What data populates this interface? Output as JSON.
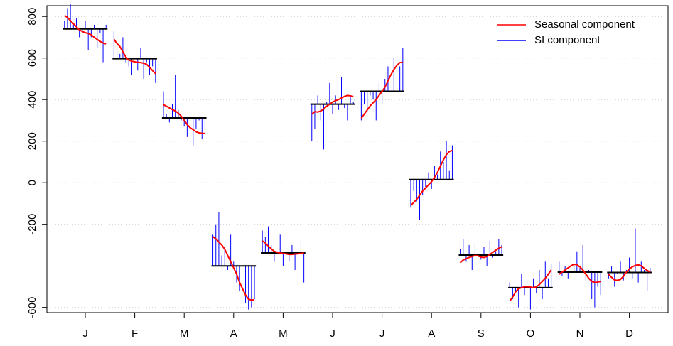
{
  "chart_data": {
    "type": "monthplot",
    "categories": [
      "J",
      "F",
      "M",
      "A",
      "M",
      "J",
      "J",
      "A",
      "S",
      "O",
      "N",
      "D"
    ],
    "means": [
      740,
      597,
      312,
      -400,
      -338,
      378,
      440,
      15,
      -348,
      -505,
      -430,
      -432
    ],
    "series": [
      {
        "name": "Seasonal component",
        "color": "#ff0000",
        "values": [
          [
            805,
            795,
            780,
            765,
            750,
            735,
            728,
            722,
            718,
            712,
            700,
            690,
            680,
            672,
            668
          ],
          [
            690,
            670,
            655,
            630,
            605,
            590,
            585,
            582,
            580,
            578,
            575,
            570,
            555,
            540,
            525
          ],
          [
            375,
            368,
            360,
            352,
            345,
            335,
            320,
            300,
            280,
            265,
            255,
            245,
            240,
            238,
            237
          ],
          [
            -260,
            -270,
            -285,
            -300,
            -320,
            -350,
            -380,
            -410,
            -440,
            -480,
            -510,
            -540,
            -560,
            -565,
            -562
          ],
          [
            -280,
            -290,
            -305,
            -318,
            -330,
            -335,
            -338,
            -340,
            -342,
            -345,
            -345,
            -343,
            -342,
            -340,
            -338
          ],
          [
            330,
            342,
            340,
            345,
            355,
            368,
            378,
            388,
            395,
            400,
            408,
            415,
            420,
            418,
            415
          ],
          [
            310,
            330,
            350,
            370,
            385,
            400,
            420,
            440,
            460,
            490,
            520,
            545,
            565,
            578,
            580
          ],
          [
            -110,
            -95,
            -80,
            -60,
            -40,
            -25,
            -10,
            5,
            25,
            50,
            80,
            110,
            135,
            150,
            155
          ],
          [
            -385,
            -372,
            -365,
            -360,
            -355,
            -350,
            -352,
            -358,
            -360,
            -355,
            -345,
            -335,
            -325,
            -315,
            -308
          ],
          [
            -570,
            -550,
            -525,
            -510,
            -505,
            -500,
            -500,
            -502,
            -505,
            -500,
            -490,
            -475,
            -460,
            -440,
            -420
          ],
          [
            -440,
            -430,
            -420,
            -410,
            -400,
            -392,
            -395,
            -405,
            -420,
            -440,
            -460,
            -475,
            -480,
            -478,
            -475
          ],
          [
            -440,
            -455,
            -468,
            -470,
            -465,
            -450,
            -430,
            -415,
            -405,
            -398,
            -395,
            -400,
            -412,
            -422,
            -430
          ]
        ]
      },
      {
        "name": "SI component",
        "color": "#0000ff",
        "values": [
          [
            780,
            840,
            860,
            760,
            790,
            700,
            720,
            780,
            640,
            700,
            760,
            650,
            720,
            580,
            760
          ],
          [
            730,
            660,
            620,
            700,
            580,
            560,
            520,
            600,
            540,
            650,
            500,
            580,
            520,
            560,
            480
          ],
          [
            440,
            330,
            290,
            380,
            520,
            350,
            300,
            270,
            220,
            320,
            180,
            260,
            300,
            210,
            250
          ],
          [
            -250,
            -200,
            -140,
            -350,
            -310,
            -420,
            -250,
            -380,
            -480,
            -520,
            -400,
            -580,
            -610,
            -600,
            -560
          ],
          [
            -230,
            -260,
            -210,
            -300,
            -380,
            -330,
            -250,
            -400,
            -330,
            -380,
            -300,
            -420,
            -340,
            -280,
            -480
          ],
          [
            200,
            260,
            420,
            300,
            160,
            390,
            480,
            330,
            420,
            350,
            510,
            360,
            300,
            420,
            390
          ],
          [
            300,
            380,
            340,
            420,
            400,
            300,
            480,
            380,
            500,
            560,
            440,
            600,
            620,
            560,
            650
          ],
          [
            -120,
            -40,
            -90,
            -180,
            -60,
            -20,
            50,
            -30,
            80,
            40,
            150,
            100,
            200,
            60,
            180
          ],
          [
            -320,
            -270,
            -380,
            -300,
            -420,
            -290,
            -350,
            -370,
            -310,
            -400,
            -280,
            -360,
            -330,
            -270,
            -300
          ],
          [
            -480,
            -560,
            -520,
            -600,
            -440,
            -540,
            -500,
            -610,
            -460,
            -530,
            -420,
            -560,
            -380,
            -460,
            -390
          ],
          [
            -380,
            -450,
            -400,
            -460,
            -350,
            -390,
            -330,
            -410,
            -300,
            -470,
            -420,
            -560,
            -600,
            -500,
            -540
          ],
          [
            -460,
            -400,
            -500,
            -440,
            -380,
            -470,
            -420,
            -360,
            -460,
            -220,
            -480,
            -380,
            -420,
            -520,
            -410
          ]
        ]
      }
    ],
    "ylim": [
      -625,
      852
    ],
    "yticks": [
      -600,
      -200,
      0,
      200,
      400,
      600,
      800
    ],
    "grid": true,
    "legend": "top-right"
  }
}
